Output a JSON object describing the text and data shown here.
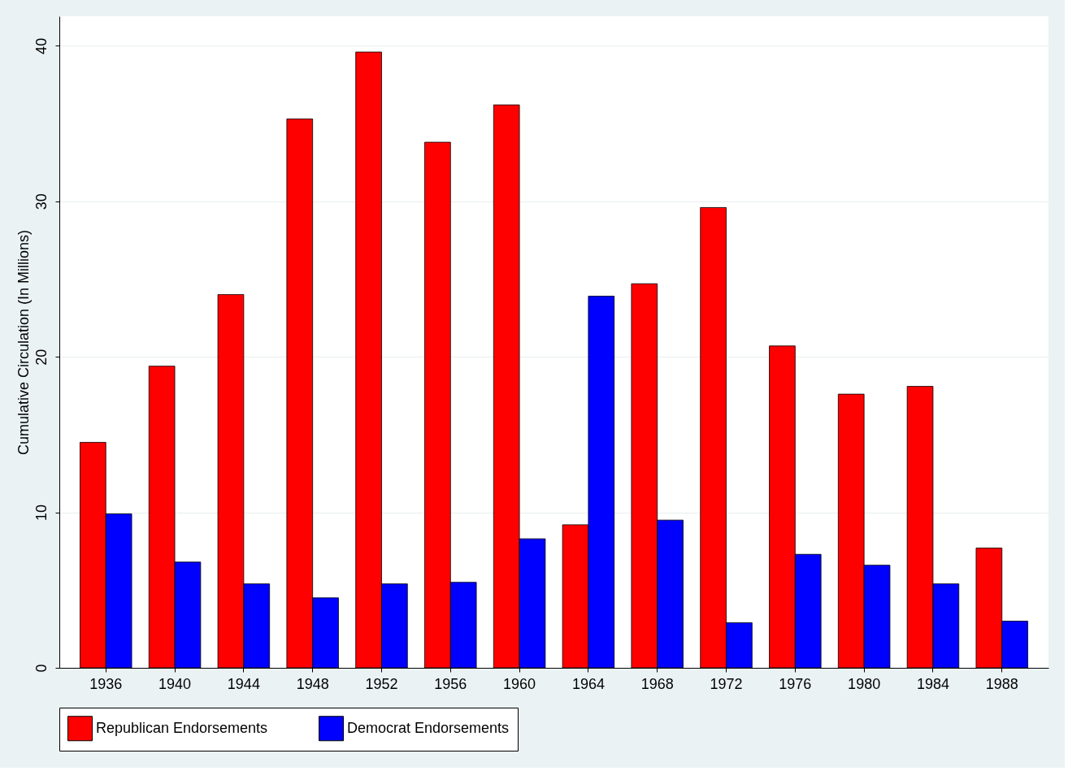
{
  "chart_data": {
    "type": "bar",
    "ylabel": "Cumulative Circulation (In Millions)",
    "categories": [
      "1936",
      "1940",
      "1944",
      "1948",
      "1952",
      "1956",
      "1960",
      "1964",
      "1968",
      "1972",
      "1976",
      "1980",
      "1984",
      "1988"
    ],
    "series": [
      {
        "name": "Republican Endorsements",
        "color": "#ff0000",
        "values": [
          14.5,
          19.4,
          24.0,
          35.3,
          39.6,
          33.8,
          36.2,
          9.2,
          24.7,
          29.6,
          20.7,
          17.6,
          18.1,
          7.7
        ]
      },
      {
        "name": "Democrat Endorsements",
        "color": "#0000ff",
        "values": [
          9.9,
          6.8,
          5.4,
          4.5,
          5.4,
          5.5,
          8.3,
          23.9,
          9.5,
          2.9,
          7.3,
          6.6,
          5.4,
          3.0
        ]
      }
    ],
    "ylim": [
      0,
      41.9
    ],
    "yticks": [
      0,
      10,
      20,
      30,
      40
    ],
    "grid": "y",
    "legend": "bottom"
  }
}
